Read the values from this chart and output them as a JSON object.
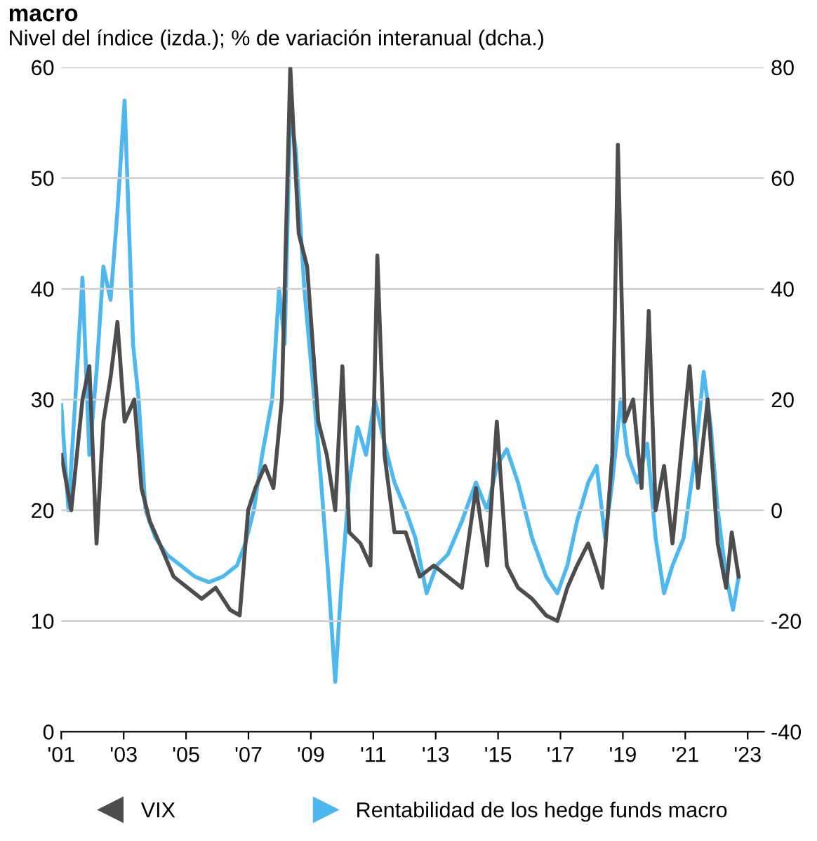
{
  "chart_data": {
    "type": "line",
    "title": "macro",
    "subtitle": "Nivel del índice (izda.); % de variación interanual (dcha.)",
    "xlim": [
      2001,
      2023.52
    ],
    "xticks": [
      {
        "value": 2001,
        "label": "'01"
      },
      {
        "value": 2003,
        "label": "'03"
      },
      {
        "value": 2005,
        "label": "'05"
      },
      {
        "value": 2007,
        "label": "'07"
      },
      {
        "value": 2009,
        "label": "'09"
      },
      {
        "value": 2011,
        "label": "'11"
      },
      {
        "value": 2013,
        "label": "'13"
      },
      {
        "value": 2015,
        "label": "'15"
      },
      {
        "value": 2017,
        "label": "'17"
      },
      {
        "value": 2019,
        "label": "'19"
      },
      {
        "value": 2021,
        "label": "'21"
      },
      {
        "value": 2023,
        "label": "'23"
      }
    ],
    "ylim": [
      0,
      60
    ],
    "yticks": [
      0,
      10,
      20,
      30,
      40,
      50,
      60
    ],
    "y2lim": [
      -40,
      80
    ],
    "y2ticks": [
      -40,
      -20,
      0,
      20,
      40,
      60,
      80
    ],
    "grid": "y",
    "legend": "bottom",
    "series": [
      {
        "name": "VIX",
        "color": "#4d4d4f",
        "x": [
          2001.0,
          2001.32,
          2001.68,
          2001.9,
          2002.13,
          2002.35,
          2002.58,
          2002.8,
          2003.03,
          2003.34,
          2003.57,
          2003.84,
          2004.15,
          2004.6,
          2005.05,
          2005.5,
          2005.95,
          2006.41,
          2006.72,
          2006.99,
          2007.22,
          2007.53,
          2007.8,
          2008.07,
          2008.34,
          2008.61,
          2008.88,
          2009.24,
          2009.51,
          2009.78,
          2010.01,
          2010.23,
          2010.59,
          2010.91,
          2011.13,
          2011.36,
          2011.68,
          2012.04,
          2012.49,
          2012.94,
          2013.39,
          2013.84,
          2014.29,
          2014.65,
          2014.96,
          2015.28,
          2015.64,
          2016.09,
          2016.54,
          2016.9,
          2017.22,
          2017.53,
          2017.89,
          2018.12,
          2018.34,
          2018.66,
          2018.84,
          2019.06,
          2019.33,
          2019.6,
          2019.83,
          2020.05,
          2020.32,
          2020.59,
          2020.86,
          2021.14,
          2021.41,
          2021.72,
          2022.04,
          2022.31,
          2022.49,
          2022.71
        ],
        "values": [
          25,
          20,
          30,
          33,
          17,
          28,
          32,
          37,
          28,
          30,
          22,
          19,
          17,
          14,
          13,
          12,
          13,
          11,
          10.5,
          20,
          22,
          24,
          22,
          30,
          60,
          45,
          42,
          28,
          25,
          20,
          33,
          18,
          17,
          15,
          43,
          25,
          18,
          18,
          14,
          15,
          14,
          13,
          22,
          15,
          28,
          15,
          13,
          12,
          10.5,
          10,
          13,
          15,
          17,
          15,
          13,
          25,
          53,
          28,
          30,
          22,
          38,
          20,
          24,
          17,
          25,
          33,
          22,
          30,
          17,
          13,
          18,
          14
        ]
      },
      {
        "name": "Rentabilidad de los hedge funds macro",
        "color": "#4db8f0",
        "axis": "y2",
        "x": [
          2001.0,
          2001.23,
          2001.45,
          2001.68,
          2001.9,
          2002.13,
          2002.35,
          2002.58,
          2002.8,
          2003.03,
          2003.3,
          2003.48,
          2003.7,
          2004.02,
          2004.38,
          2004.83,
          2005.28,
          2005.73,
          2006.18,
          2006.63,
          2006.9,
          2007.17,
          2007.44,
          2007.76,
          2007.98,
          2008.16,
          2008.34,
          2008.52,
          2008.79,
          2009.11,
          2009.33,
          2009.56,
          2009.78,
          2009.96,
          2010.23,
          2010.5,
          2010.77,
          2011.05,
          2011.36,
          2011.68,
          2012.04,
          2012.35,
          2012.71,
          2013.03,
          2013.39,
          2013.84,
          2014.29,
          2014.65,
          2014.96,
          2015.28,
          2015.64,
          2016.09,
          2016.54,
          2016.9,
          2017.22,
          2017.53,
          2017.89,
          2018.16,
          2018.43,
          2018.66,
          2018.93,
          2019.15,
          2019.47,
          2019.78,
          2020.05,
          2020.32,
          2020.59,
          2020.95,
          2021.32,
          2021.59,
          2021.82,
          2022.04,
          2022.31,
          2022.53,
          2022.71
        ],
        "values": [
          19,
          0,
          20,
          42,
          10,
          25,
          44,
          38,
          54,
          74,
          30,
          20,
          0,
          -5,
          -8,
          -10,
          -12,
          -13,
          -12,
          -10,
          -6,
          0,
          10,
          20,
          40,
          30,
          72,
          65,
          40,
          20,
          5,
          -12,
          -31,
          -15,
          5,
          15,
          10,
          20,
          12,
          5,
          0,
          -5,
          -15,
          -10,
          -8,
          -2,
          5,
          0,
          8,
          11,
          5,
          -5,
          -12,
          -15,
          -10,
          -2,
          5,
          8,
          -5,
          5,
          20,
          10,
          5,
          12,
          -5,
          -15,
          -10,
          -5,
          10,
          25,
          15,
          0,
          -12,
          -18,
          -12
        ]
      }
    ]
  }
}
